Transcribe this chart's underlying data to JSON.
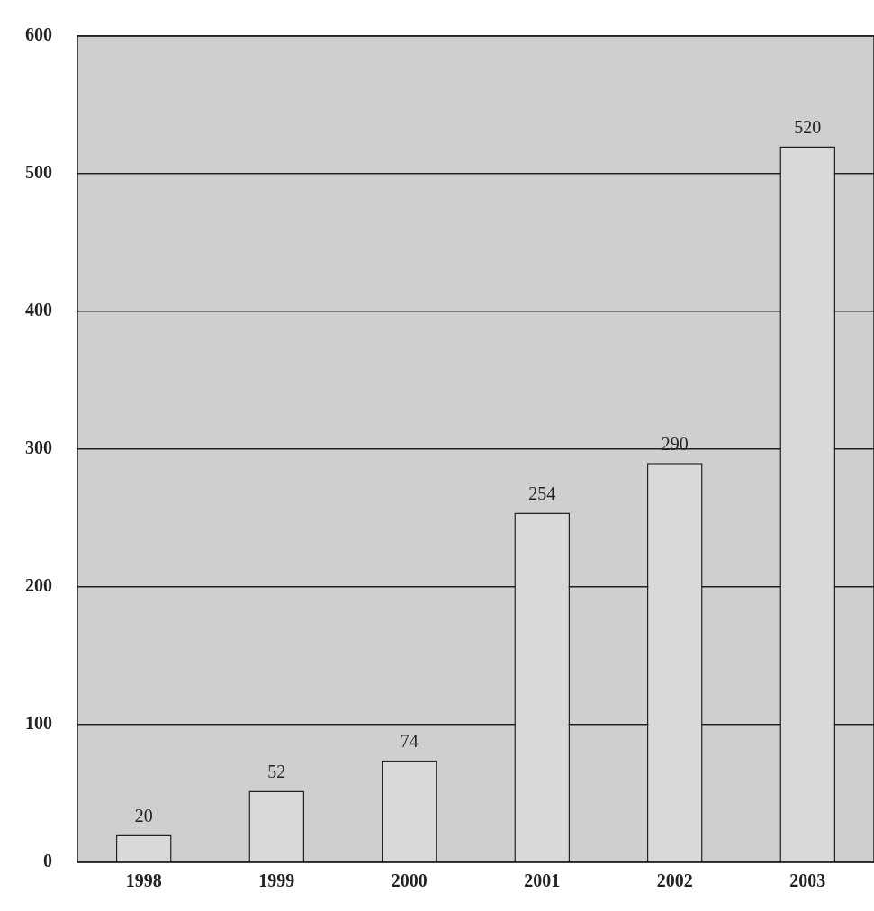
{
  "chart_data": {
    "type": "bar",
    "categories": [
      "1998",
      "1999",
      "2000",
      "2001",
      "2002",
      "2003"
    ],
    "values": [
      20,
      52,
      74,
      254,
      290,
      520
    ],
    "color": "#d9d9d9",
    "ylim": [
      0,
      600
    ],
    "yticks": [
      0,
      100,
      200,
      300,
      400,
      500,
      600
    ],
    "grid": "y",
    "data_labels": true
  }
}
